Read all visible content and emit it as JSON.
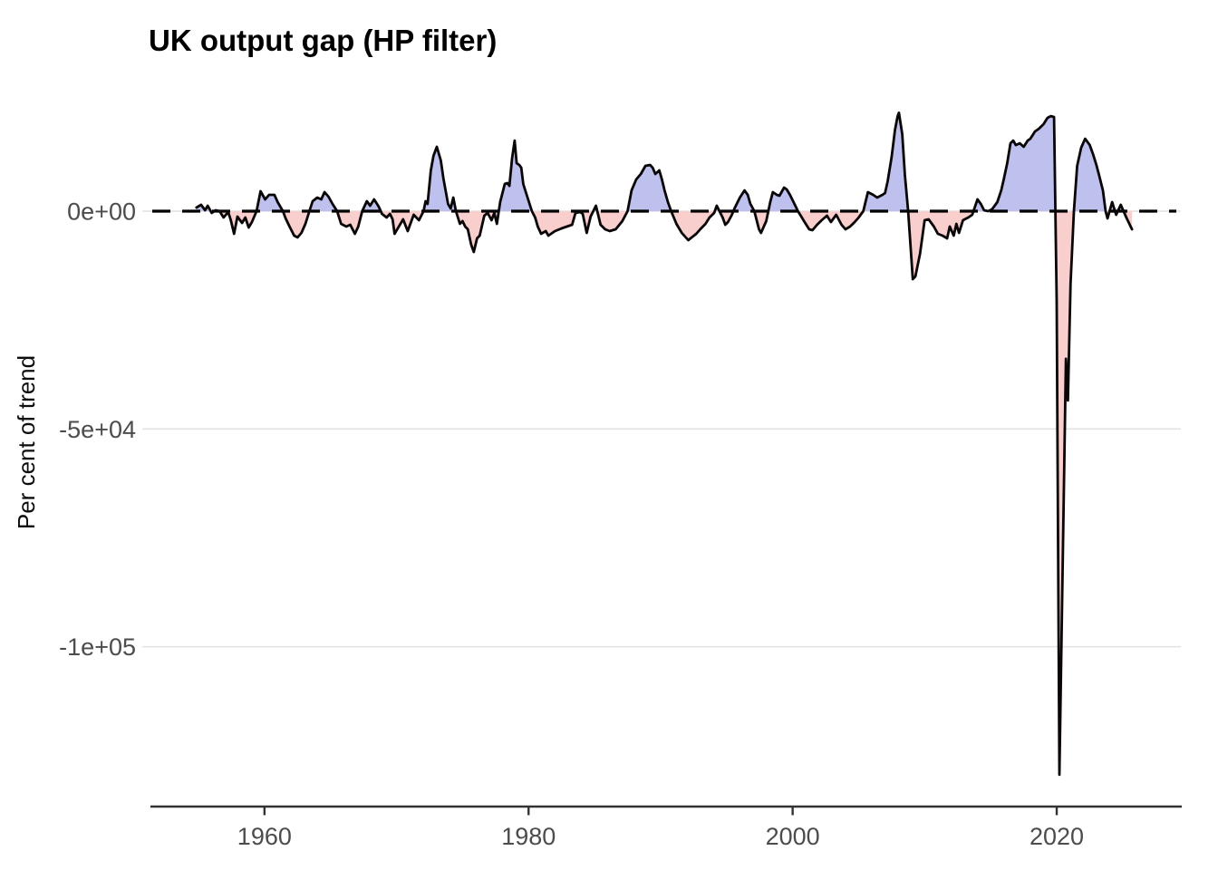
{
  "chart_data": {
    "type": "area",
    "title": "UK output gap (HP filter)",
    "ylabel": "Per cent of trend",
    "xlabel": "",
    "legend_position": "none",
    "grid": "horizontal-major-only",
    "zero_line_style": "dashed-black",
    "x_range": [
      1951.5,
      2029.4
    ],
    "y_range": [
      -136700,
      30800
    ],
    "x_ticks": [
      {
        "label": "1960",
        "year": 1960
      },
      {
        "label": "1980",
        "year": 1980
      },
      {
        "label": "2000",
        "year": 2000
      },
      {
        "label": "2020",
        "year": 2020
      }
    ],
    "y_ticks": [
      {
        "label": "0e+00",
        "value": 0
      },
      {
        "label": "-5e+04",
        "value": -50000
      },
      {
        "label": "-1e+05",
        "value": -100000
      }
    ],
    "colors": {
      "positive_fill": "#bec0ee",
      "negative_fill": "#f8cfcc",
      "line": "#0a0507",
      "grid": "#e3e3e3",
      "axis": "#333333",
      "tick_label": "#4c4c4c",
      "title": "#000000"
    },
    "series_name": "output-gap-per-cent-of-trend",
    "points": [
      [
        1954.85,
        830
      ],
      [
        1955.2,
        1460
      ],
      [
        1955.5,
        210
      ],
      [
        1955.7,
        1250
      ],
      [
        1956.0,
        -420
      ],
      [
        1956.3,
        210
      ],
      [
        1956.6,
        0
      ],
      [
        1956.9,
        -1460
      ],
      [
        1957.25,
        -210
      ],
      [
        1957.45,
        -2080
      ],
      [
        1957.7,
        -5200
      ],
      [
        1957.95,
        -1250
      ],
      [
        1958.3,
        -2700
      ],
      [
        1958.55,
        -1460
      ],
      [
        1958.8,
        -3740
      ],
      [
        1959.05,
        -2500
      ],
      [
        1959.4,
        0
      ],
      [
        1959.7,
        4580
      ],
      [
        1960.05,
        2700
      ],
      [
        1960.35,
        3740
      ],
      [
        1960.75,
        3740
      ],
      [
        1961.0,
        2080
      ],
      [
        1961.4,
        0
      ],
      [
        1961.6,
        -1660
      ],
      [
        1961.9,
        -3540
      ],
      [
        1962.25,
        -5620
      ],
      [
        1962.5,
        -6030
      ],
      [
        1962.8,
        -4990
      ],
      [
        1963.1,
        -2910
      ],
      [
        1963.4,
        0
      ],
      [
        1963.65,
        2290
      ],
      [
        1964.0,
        3120
      ],
      [
        1964.3,
        2700
      ],
      [
        1964.55,
        4370
      ],
      [
        1964.85,
        3330
      ],
      [
        1965.15,
        1660
      ],
      [
        1965.5,
        0
      ],
      [
        1965.8,
        -2910
      ],
      [
        1966.2,
        -3540
      ],
      [
        1966.5,
        -3120
      ],
      [
        1966.85,
        -5200
      ],
      [
        1967.1,
        -3540
      ],
      [
        1967.4,
        0
      ],
      [
        1967.75,
        2290
      ],
      [
        1968.0,
        1250
      ],
      [
        1968.3,
        2700
      ],
      [
        1968.65,
        1040
      ],
      [
        1968.9,
        -620
      ],
      [
        1969.25,
        -1460
      ],
      [
        1969.5,
        -620
      ],
      [
        1969.7,
        -1870
      ],
      [
        1969.85,
        -5200
      ],
      [
        1970.5,
        -1870
      ],
      [
        1970.85,
        -4580
      ],
      [
        1971.3,
        -830
      ],
      [
        1971.7,
        -2080
      ],
      [
        1972.05,
        0
      ],
      [
        1972.2,
        2290
      ],
      [
        1972.35,
        1660
      ],
      [
        1972.6,
        9360
      ],
      [
        1972.8,
        12690
      ],
      [
        1973.05,
        14770
      ],
      [
        1973.35,
        11650
      ],
      [
        1973.55,
        7490
      ],
      [
        1973.9,
        1660
      ],
      [
        1974.1,
        620
      ],
      [
        1974.3,
        3120
      ],
      [
        1974.5,
        0
      ],
      [
        1974.8,
        -2910
      ],
      [
        1975.0,
        -2290
      ],
      [
        1975.2,
        -3540
      ],
      [
        1975.4,
        -4160
      ],
      [
        1975.65,
        -7700
      ],
      [
        1975.85,
        -9360
      ],
      [
        1976.1,
        -6240
      ],
      [
        1976.3,
        -5620
      ],
      [
        1976.65,
        -1040
      ],
      [
        1976.9,
        -420
      ],
      [
        1977.2,
        -2080
      ],
      [
        1977.4,
        -420
      ],
      [
        1977.6,
        -2910
      ],
      [
        1977.85,
        2080
      ],
      [
        1978.2,
        6240
      ],
      [
        1978.4,
        6450
      ],
      [
        1978.55,
        5820
      ],
      [
        1978.75,
        12060
      ],
      [
        1978.95,
        16220
      ],
      [
        1979.1,
        11020
      ],
      [
        1979.3,
        10610
      ],
      [
        1979.45,
        9980
      ],
      [
        1979.6,
        6240
      ],
      [
        1979.9,
        3330
      ],
      [
        1980.25,
        0
      ],
      [
        1980.5,
        -1460
      ],
      [
        1980.7,
        -3540
      ],
      [
        1980.95,
        -5200
      ],
      [
        1981.3,
        -4580
      ],
      [
        1981.5,
        -5620
      ],
      [
        1981.8,
        -4990
      ],
      [
        1982.0,
        -4580
      ],
      [
        1982.5,
        -3950
      ],
      [
        1982.9,
        -3540
      ],
      [
        1983.3,
        -3120
      ],
      [
        1983.55,
        -420
      ],
      [
        1983.9,
        -210
      ],
      [
        1984.1,
        -620
      ],
      [
        1984.4,
        -4990
      ],
      [
        1984.7,
        -1250
      ],
      [
        1985.1,
        1250
      ],
      [
        1985.45,
        -3120
      ],
      [
        1985.8,
        -4160
      ],
      [
        1986.15,
        -4580
      ],
      [
        1986.6,
        -4160
      ],
      [
        1987.1,
        -2290
      ],
      [
        1987.5,
        0
      ],
      [
        1987.8,
        4780
      ],
      [
        1988.15,
        7280
      ],
      [
        1988.5,
        8530
      ],
      [
        1988.85,
        10400
      ],
      [
        1989.2,
        10610
      ],
      [
        1989.4,
        9980
      ],
      [
        1989.6,
        8530
      ],
      [
        1989.9,
        9360
      ],
      [
        1990.1,
        7280
      ],
      [
        1990.3,
        4780
      ],
      [
        1990.55,
        2080
      ],
      [
        1990.8,
        0
      ],
      [
        1991.2,
        -2910
      ],
      [
        1991.6,
        -4990
      ],
      [
        1992.1,
        -6660
      ],
      [
        1992.7,
        -5200
      ],
      [
        1993.0,
        -4160
      ],
      [
        1993.4,
        -2910
      ],
      [
        1993.7,
        -1460
      ],
      [
        1994.05,
        -420
      ],
      [
        1994.25,
        1250
      ],
      [
        1994.7,
        -1460
      ],
      [
        1994.9,
        -3120
      ],
      [
        1995.1,
        -2500
      ],
      [
        1995.4,
        -830
      ],
      [
        1995.6,
        620
      ],
      [
        1996.0,
        3120
      ],
      [
        1996.35,
        4780
      ],
      [
        1996.6,
        3740
      ],
      [
        1996.8,
        1660
      ],
      [
        1997.1,
        0
      ],
      [
        1997.45,
        -4160
      ],
      [
        1997.6,
        -4990
      ],
      [
        1998.0,
        -2290
      ],
      [
        1998.3,
        2080
      ],
      [
        1998.5,
        4370
      ],
      [
        1998.8,
        3740
      ],
      [
        1999.0,
        3540
      ],
      [
        1999.35,
        5410
      ],
      [
        1999.55,
        4990
      ],
      [
        1999.8,
        3740
      ],
      [
        2000.2,
        1250
      ],
      [
        2000.4,
        0
      ],
      [
        2000.7,
        -1460
      ],
      [
        2000.9,
        -2500
      ],
      [
        2001.25,
        -4160
      ],
      [
        2001.5,
        -4370
      ],
      [
        2001.85,
        -3120
      ],
      [
        2002.2,
        -2080
      ],
      [
        2002.6,
        -1040
      ],
      [
        2002.9,
        -2500
      ],
      [
        2003.3,
        -830
      ],
      [
        2003.7,
        -3120
      ],
      [
        2004.0,
        -4160
      ],
      [
        2004.35,
        -3540
      ],
      [
        2004.7,
        -2500
      ],
      [
        2005.0,
        -1460
      ],
      [
        2005.35,
        0
      ],
      [
        2005.7,
        4370
      ],
      [
        2006.1,
        3740
      ],
      [
        2006.4,
        3120
      ],
      [
        2006.8,
        3740
      ],
      [
        2007.0,
        4160
      ],
      [
        2007.2,
        6870
      ],
      [
        2007.5,
        12480
      ],
      [
        2007.75,
        18720
      ],
      [
        2007.95,
        21840
      ],
      [
        2008.05,
        22600
      ],
      [
        2008.3,
        17680
      ],
      [
        2008.5,
        8320
      ],
      [
        2008.75,
        0
      ],
      [
        2009.0,
        -11230
      ],
      [
        2009.1,
        -15600
      ],
      [
        2009.3,
        -14980
      ],
      [
        2009.65,
        -9780
      ],
      [
        2010.0,
        -2080
      ],
      [
        2010.3,
        -1870
      ],
      [
        2010.7,
        -3540
      ],
      [
        2011.0,
        -5200
      ],
      [
        2011.35,
        -5620
      ],
      [
        2011.7,
        -6240
      ],
      [
        2011.9,
        -3540
      ],
      [
        2012.2,
        -5620
      ],
      [
        2012.4,
        -2910
      ],
      [
        2012.6,
        -4990
      ],
      [
        2012.9,
        -2080
      ],
      [
        2013.3,
        -1460
      ],
      [
        2013.6,
        -830
      ],
      [
        2014.0,
        2700
      ],
      [
        2014.25,
        1660
      ],
      [
        2014.5,
        210
      ],
      [
        2014.8,
        0
      ],
      [
        2015.1,
        420
      ],
      [
        2015.5,
        2080
      ],
      [
        2015.8,
        4780
      ],
      [
        2016.0,
        7490
      ],
      [
        2016.25,
        11020
      ],
      [
        2016.5,
        15600
      ],
      [
        2016.7,
        16220
      ],
      [
        2016.9,
        15180
      ],
      [
        2017.2,
        15600
      ],
      [
        2017.5,
        14770
      ],
      [
        2017.8,
        16220
      ],
      [
        2018.0,
        16640
      ],
      [
        2018.35,
        18300
      ],
      [
        2018.65,
        18930
      ],
      [
        2019.0,
        19970
      ],
      [
        2019.3,
        21420
      ],
      [
        2019.55,
        21840
      ],
      [
        2019.8,
        21630
      ],
      [
        2020.0,
        -20800
      ],
      [
        2020.2,
        -129380
      ],
      [
        2020.7,
        -33900
      ],
      [
        2020.85,
        -43470
      ],
      [
        2021.05,
        -16640
      ],
      [
        2021.3,
        0
      ],
      [
        2021.55,
        10400
      ],
      [
        2021.85,
        14560
      ],
      [
        2022.15,
        16640
      ],
      [
        2022.5,
        15180
      ],
      [
        2022.75,
        13100
      ],
      [
        2023.0,
        10610
      ],
      [
        2023.2,
        8320
      ],
      [
        2023.5,
        4780
      ],
      [
        2023.7,
        0
      ],
      [
        2023.85,
        -1660
      ],
      [
        2024.2,
        2080
      ],
      [
        2024.5,
        -830
      ],
      [
        2024.85,
        1460
      ],
      [
        2025.3,
        -1660
      ],
      [
        2025.7,
        -4160
      ]
    ]
  }
}
